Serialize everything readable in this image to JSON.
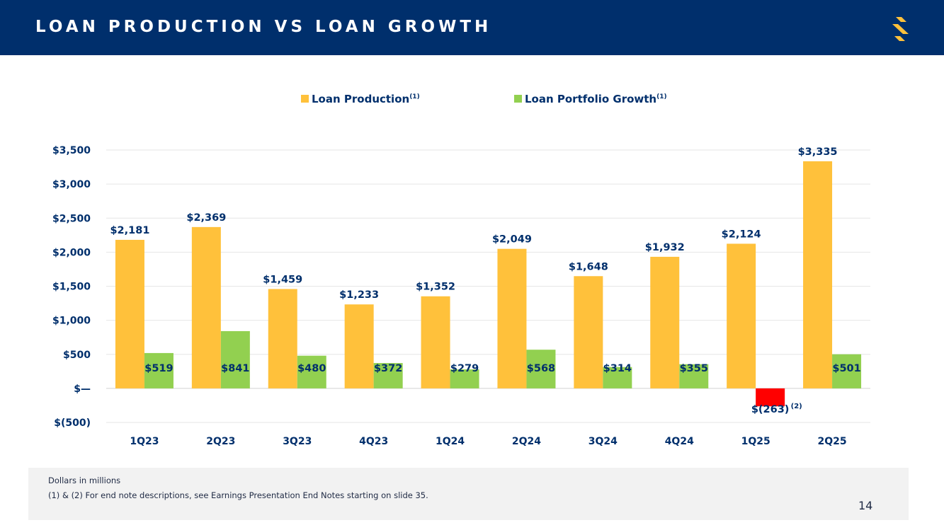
{
  "header": {
    "title": "LOAN PRODUCTION VS LOAN GROWTH",
    "logo_icon": "s-logo-icon"
  },
  "colors": {
    "header_bg": "#002f6c",
    "production": "#ffc13b",
    "growth": "#92d050",
    "negative": "#ff0000",
    "label": "#002f6c"
  },
  "legend": {
    "production_label": "Loan Production",
    "production_note": "(1)",
    "growth_label": "Loan Portfolio Growth",
    "growth_note": "(1)"
  },
  "chart_data": {
    "type": "bar",
    "categories": [
      "1Q23",
      "2Q23",
      "3Q23",
      "4Q23",
      "1Q24",
      "2Q24",
      "3Q24",
      "4Q24",
      "1Q25",
      "2Q25"
    ],
    "series": [
      {
        "name": "Loan Production",
        "values": [
          2181,
          2369,
          1459,
          1233,
          1352,
          2049,
          1648,
          1932,
          2124,
          3335
        ]
      },
      {
        "name": "Loan Portfolio Growth",
        "values": [
          519,
          841,
          480,
          372,
          279,
          568,
          314,
          355,
          -263,
          501
        ]
      }
    ],
    "production_labels": [
      "$2,181",
      "$2,369",
      "$1,459",
      "$1,233",
      "$1,352",
      "$2,049",
      "$1,648",
      "$1,932",
      "$2,124",
      "$3,335"
    ],
    "growth_labels": [
      "$519",
      "$841",
      "$480",
      "$372",
      "$279",
      "$568",
      "$314",
      "$355",
      "$(263)",
      "$501"
    ],
    "negative_note": "(2)",
    "y_ticks": [
      -500,
      0,
      500,
      1000,
      1500,
      2000,
      2500,
      3000,
      3500
    ],
    "y_tick_labels": [
      "$(500)",
      "$—",
      "$500",
      "$1,000",
      "$1,500",
      "$2,000",
      "$2,500",
      "$3,000",
      "$3,500"
    ],
    "ylim": [
      -500,
      3500
    ],
    "gridlines": true,
    "legend_position": "top"
  },
  "footer": {
    "note1": "Dollars in millions",
    "note2": "(1) & (2)  For end note descriptions, see Earnings Presentation End Notes starting on slide 35.",
    "page_number": "14"
  }
}
